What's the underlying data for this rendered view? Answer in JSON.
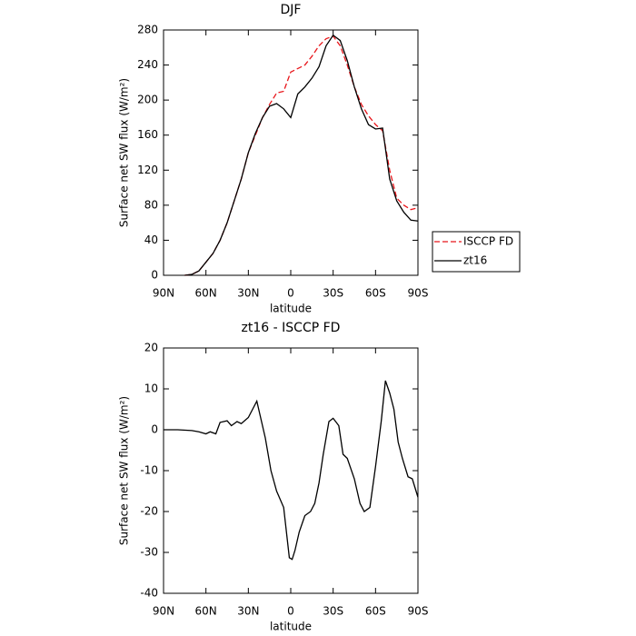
{
  "chart_data": [
    {
      "type": "line",
      "title": "DJF",
      "xlabel": "latitude",
      "ylabel": "Surface net SW flux (W/m²)",
      "x": [
        90,
        85,
        80,
        75,
        70,
        65,
        60,
        55,
        50,
        45,
        40,
        35,
        30,
        25,
        20,
        15,
        10,
        5,
        0,
        -5,
        -10,
        -15,
        -20,
        -25,
        -30,
        -35,
        -40,
        -45,
        -50,
        -55,
        -60,
        -65,
        -70,
        -75,
        -80,
        -85,
        -90
      ],
      "series": [
        {
          "name": "ISCCP FD",
          "color": "#e8161b",
          "dash": true,
          "values": [
            null,
            null,
            null,
            0,
            1,
            5,
            15,
            25,
            40,
            60,
            85,
            110,
            140,
            160,
            180,
            195,
            208,
            210,
            232,
            236,
            240,
            250,
            262,
            270,
            273,
            262,
            240,
            215,
            195,
            182,
            172,
            165,
            120,
            88,
            80,
            75,
            77
          ]
        },
        {
          "name": "zt16",
          "color": "#000000",
          "dash": false,
          "values": [
            null,
            null,
            null,
            0,
            1,
            5,
            15,
            25,
            40,
            60,
            85,
            110,
            140,
            162,
            180,
            193,
            196,
            190,
            180,
            207,
            215,
            225,
            238,
            262,
            274,
            268,
            245,
            215,
            190,
            172,
            167,
            168,
            110,
            85,
            72,
            63,
            62
          ]
        }
      ],
      "xlim": [
        90,
        -90
      ],
      "xticks": [
        {
          "value": 90,
          "label": "90N"
        },
        {
          "value": 60,
          "label": "60N"
        },
        {
          "value": 30,
          "label": "30N"
        },
        0,
        {
          "value": -30,
          "label": "30S"
        },
        {
          "value": -60,
          "label": "60S"
        },
        {
          "value": -90,
          "label": "90S"
        }
      ],
      "ylim": [
        0,
        280
      ],
      "yticks": [
        0,
        40,
        80,
        120,
        160,
        200,
        240,
        280
      ],
      "legend": "right"
    },
    {
      "type": "line",
      "title": "zt16 - ISCCP FD",
      "xlabel": "latitude",
      "ylabel": "Surface net SW flux (W/m²)",
      "x": [
        90,
        80,
        70,
        65,
        60,
        57,
        53,
        50,
        45,
        42,
        38,
        35,
        30,
        24,
        22,
        18,
        14,
        10,
        5,
        1,
        -1,
        -3,
        -6,
        -10,
        -14,
        -17,
        -20,
        -23,
        -27,
        -30,
        -34,
        -37,
        -40,
        -45,
        -49,
        -52,
        -56,
        -60,
        -64,
        -67,
        -70,
        -73,
        -76,
        -79,
        -83,
        -86,
        -90
      ],
      "series": [
        {
          "color": "#000000",
          "dash": false,
          "values": [
            0,
            0,
            -0.2,
            -0.5,
            -1,
            -0.5,
            -1,
            1.8,
            2.2,
            1,
            2,
            1.5,
            3,
            7,
            4,
            -2,
            -10,
            -15,
            -19,
            -31.3,
            -31.7,
            -29.5,
            -25,
            -21,
            -20,
            -18,
            -13,
            -6,
            2,
            2.8,
            1,
            -6,
            -7,
            -12,
            -18,
            -20,
            -19,
            -9,
            2,
            12,
            9,
            5,
            -3,
            -7,
            -11.5,
            -12,
            -16.5
          ]
        }
      ],
      "xlim": [
        90,
        -90
      ],
      "xticks": [
        {
          "value": 90,
          "label": "90N"
        },
        {
          "value": 60,
          "label": "60N"
        },
        {
          "value": 30,
          "label": "30N"
        },
        0,
        {
          "value": -30,
          "label": "30S"
        },
        {
          "value": -60,
          "label": "60S"
        },
        {
          "value": -90,
          "label": "90S"
        }
      ],
      "ylim": [
        -40,
        20
      ],
      "yticks": [
        -40,
        -30,
        -20,
        -10,
        0,
        10,
        20
      ]
    }
  ]
}
